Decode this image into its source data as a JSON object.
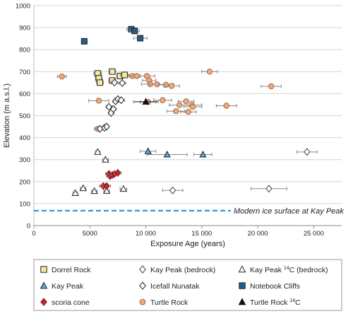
{
  "chart_data": {
    "type": "scatter",
    "xlabel": "Exposure Age (years)",
    "ylabel": "Elevation (m a.s.l.)",
    "xlim": [
      0,
      27500
    ],
    "ylim": [
      0,
      1000
    ],
    "x_ticks": [
      0,
      5000,
      10000,
      15000,
      20000,
      25000
    ],
    "x_tick_labels": [
      "0",
      "5000",
      "10 000",
      "15 000",
      "20 000",
      "25 000"
    ],
    "y_ticks": [
      0,
      100,
      200,
      300,
      400,
      500,
      600,
      700,
      800,
      900,
      1000
    ],
    "y_tick_labels": [
      "0",
      "100",
      "200",
      "300",
      "400",
      "500",
      "600",
      "700",
      "800",
      "900",
      "1000"
    ],
    "grid": "horizontal",
    "legend_position": "bottom",
    "annotation": {
      "text": "Modern ice surface at Kay Peak",
      "elevation": 68,
      "color": "#1f8dc9"
    },
    "series": [
      {
        "name": "Dorrel Rock",
        "marker": "square",
        "color": "#f3e9a0",
        "edge": "#222222",
        "points": [
          {
            "x": 5700,
            "y": 692,
            "xerr": 350
          },
          {
            "x": 5800,
            "y": 670,
            "xerr": 300
          },
          {
            "x": 5900,
            "y": 650,
            "xerr": 300
          },
          {
            "x": 7000,
            "y": 700,
            "xerr": 300
          },
          {
            "x": 7000,
            "y": 660,
            "xerr": 300
          },
          {
            "x": 7700,
            "y": 680,
            "xerr": 300
          },
          {
            "x": 8100,
            "y": 685,
            "xerr": 350
          }
        ]
      },
      {
        "name": "Kay Peak (bedrock)",
        "marker": "diamond",
        "color": "#ffffff",
        "edge": "#444444",
        "points": [
          {
            "x": 12400,
            "y": 160,
            "xerr": 900
          },
          {
            "x": 21000,
            "y": 168,
            "xerr": 1600
          },
          {
            "x": 24400,
            "y": 335,
            "xerr": 900
          }
        ]
      },
      {
        "name": "Kay Peak ",
        "name_sup": "14",
        "name_suffix": "C (bedrock)",
        "marker": "triangle",
        "color": "#ffffff",
        "edge": "#222222",
        "points": [
          {
            "x": 3700,
            "y": 148,
            "xerr": 200
          },
          {
            "x": 4400,
            "y": 170,
            "xerr": 250
          },
          {
            "x": 5400,
            "y": 157,
            "xerr": 250
          },
          {
            "x": 5700,
            "y": 335,
            "xerr": 200
          },
          {
            "x": 6400,
            "y": 300,
            "xerr": 250
          },
          {
            "x": 6500,
            "y": 158,
            "xerr": 250
          },
          {
            "x": 8000,
            "y": 167,
            "xerr": 300
          }
        ]
      },
      {
        "name": "Kay Peak",
        "marker": "triangle",
        "color": "#4fa9d8",
        "edge": "#222222",
        "points": [
          {
            "x": 10200,
            "y": 338,
            "xerr": 700
          },
          {
            "x": 11900,
            "y": 323,
            "xerr": 1800
          },
          {
            "x": 15100,
            "y": 323,
            "xerr": 800
          }
        ]
      },
      {
        "name": "Icefall Nunatak",
        "marker": "diamond",
        "color": "#ffffff",
        "edge": "#222222",
        "points": [
          {
            "x": 5900,
            "y": 440,
            "xerr": 200
          },
          {
            "x": 6300,
            "y": 445,
            "xerr": 200
          },
          {
            "x": 6500,
            "y": 450,
            "xerr": 200
          },
          {
            "x": 6700,
            "y": 540,
            "xerr": 250
          },
          {
            "x": 6900,
            "y": 512,
            "xerr": 250
          },
          {
            "x": 7100,
            "y": 530,
            "xerr": 250
          },
          {
            "x": 7300,
            "y": 565,
            "xerr": 250
          },
          {
            "x": 7500,
            "y": 575,
            "xerr": 300
          },
          {
            "x": 7800,
            "y": 570,
            "xerr": 300
          },
          {
            "x": 7200,
            "y": 650,
            "xerr": 300
          },
          {
            "x": 7900,
            "y": 648,
            "xerr": 300
          }
        ]
      },
      {
        "name": "Notebook Cliffs",
        "marker": "square",
        "color": "#1f5f8b",
        "edge": "#222222",
        "points": [
          {
            "x": 4500,
            "y": 838,
            "xerr": 250
          },
          {
            "x": 8700,
            "y": 893,
            "xerr": 400
          },
          {
            "x": 9000,
            "y": 885,
            "xerr": 400
          },
          {
            "x": 9500,
            "y": 852,
            "xerr": 600
          }
        ]
      },
      {
        "name": "scoria cone",
        "marker": "diamond",
        "color": "#c0262d",
        "edge": "#8a1a1f",
        "points": [
          {
            "x": 6200,
            "y": 180,
            "xerr": 350
          },
          {
            "x": 6500,
            "y": 180,
            "xerr": 350
          },
          {
            "x": 6700,
            "y": 235,
            "xerr": 300
          },
          {
            "x": 6800,
            "y": 225,
            "xerr": 300
          },
          {
            "x": 7000,
            "y": 230,
            "xerr": 300
          },
          {
            "x": 7200,
            "y": 235,
            "xerr": 300
          },
          {
            "x": 7500,
            "y": 240,
            "xerr": 300
          }
        ]
      },
      {
        "name": "Turtle Rock",
        "marker": "circle",
        "color": "#f0a87a",
        "edge": "#a06a48",
        "points": [
          {
            "x": 2500,
            "y": 678,
            "xerr": 400
          },
          {
            "x": 5700,
            "y": 440,
            "xerr": 300
          },
          {
            "x": 5800,
            "y": 568,
            "xerr": 900
          },
          {
            "x": 8800,
            "y": 680,
            "xerr": 700
          },
          {
            "x": 9200,
            "y": 680,
            "xerr": 700
          },
          {
            "x": 10100,
            "y": 680,
            "xerr": 700
          },
          {
            "x": 10300,
            "y": 660,
            "xerr": 600
          },
          {
            "x": 10400,
            "y": 643,
            "xerr": 800
          },
          {
            "x": 11000,
            "y": 642,
            "xerr": 700
          },
          {
            "x": 11800,
            "y": 640,
            "xerr": 700
          },
          {
            "x": 12300,
            "y": 635,
            "xerr": 700
          },
          {
            "x": 10200,
            "y": 562,
            "xerr": 700
          },
          {
            "x": 11500,
            "y": 570,
            "xerr": 800
          },
          {
            "x": 12700,
            "y": 520,
            "xerr": 800
          },
          {
            "x": 13000,
            "y": 548,
            "xerr": 900
          },
          {
            "x": 13600,
            "y": 565,
            "xerr": 700
          },
          {
            "x": 14100,
            "y": 548,
            "xerr": 900
          },
          {
            "x": 14200,
            "y": 540,
            "xerr": 800
          },
          {
            "x": 13800,
            "y": 517,
            "xerr": 700
          },
          {
            "x": 15700,
            "y": 700,
            "xerr": 700
          },
          {
            "x": 17200,
            "y": 545,
            "xerr": 900
          },
          {
            "x": 21200,
            "y": 633,
            "xerr": 900
          }
        ]
      },
      {
        "name": "Turtle Rock ",
        "name_sup": "14",
        "name_suffix": "C",
        "marker": "triangle",
        "color": "#111111",
        "edge": "#111111",
        "points": [
          {
            "x": 10000,
            "y": 563,
            "xerr": 1100
          }
        ]
      }
    ]
  }
}
